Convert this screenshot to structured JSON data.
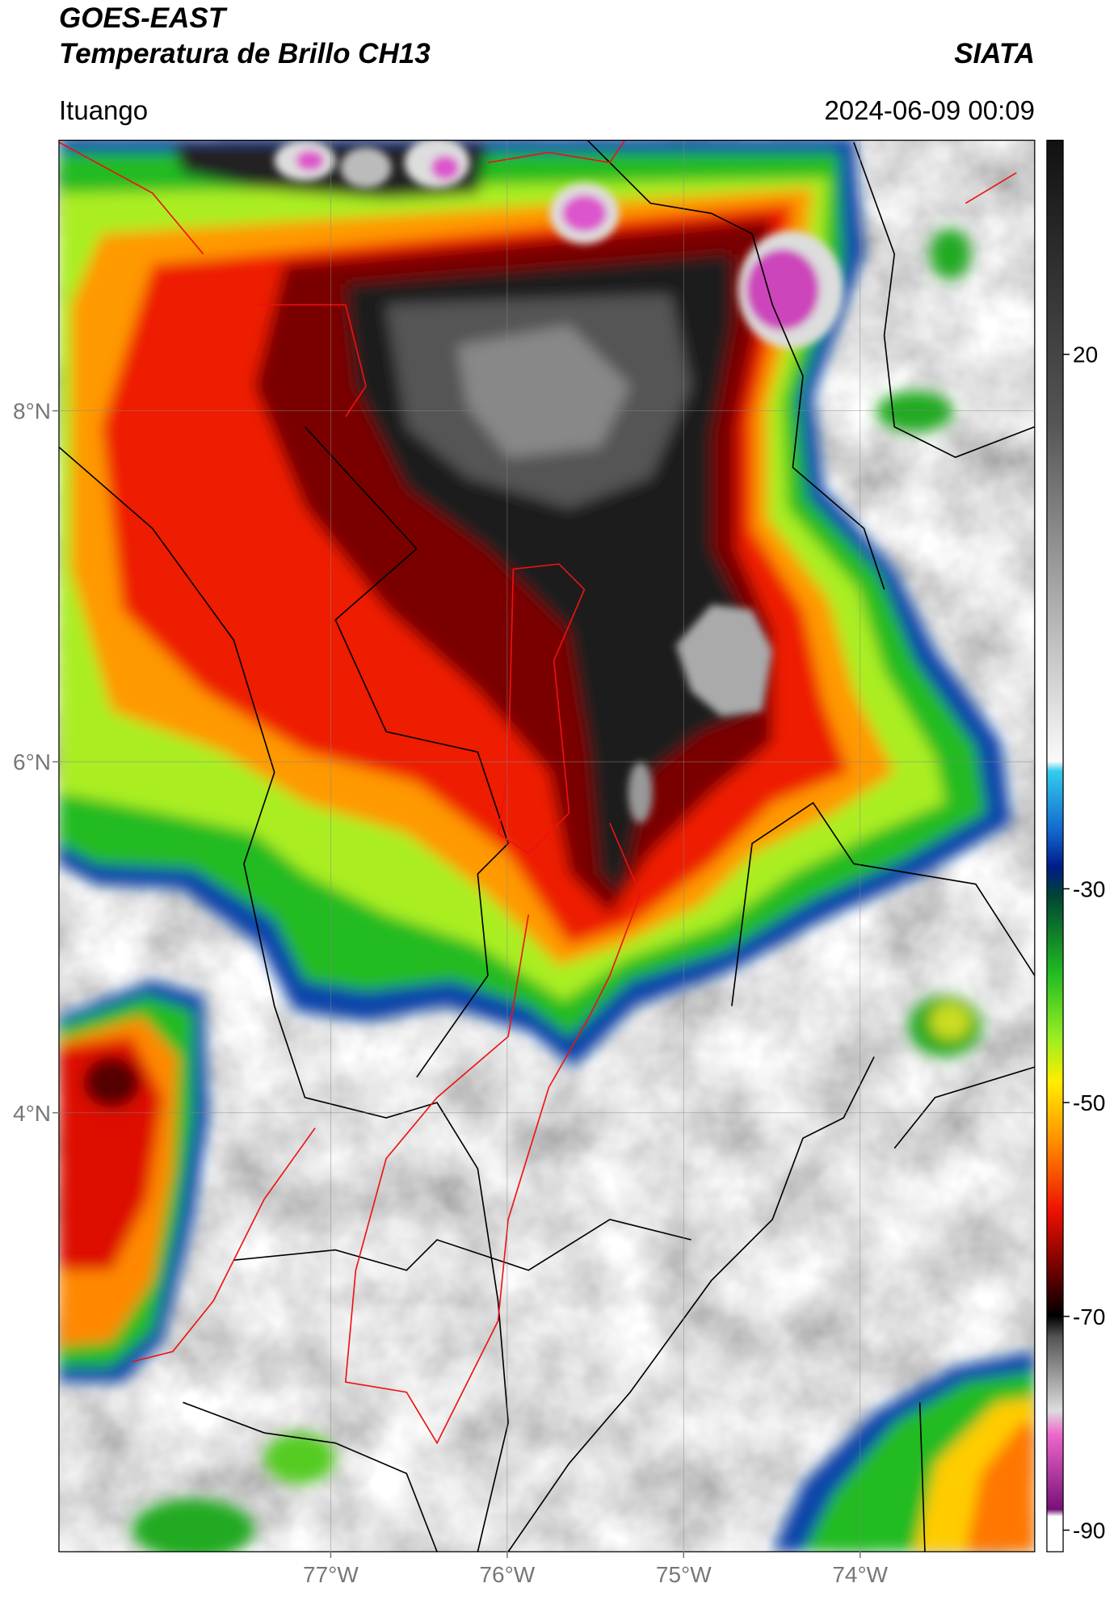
{
  "header": {
    "title_line1": "GOES-EAST",
    "title_line2": "Temperatura de Brillo CH13",
    "source": "SIATA",
    "location": "Ituango",
    "datetime": "2024-06-09 00:09"
  },
  "map": {
    "xlim": [
      -78.54,
      -73.01
    ],
    "ylim": [
      1.5,
      9.54
    ],
    "xticks": [
      {
        "value": -77,
        "label": "77°W"
      },
      {
        "value": -76,
        "label": "76°W"
      },
      {
        "value": -75,
        "label": "75°W"
      },
      {
        "value": -74,
        "label": "74°W"
      }
    ],
    "yticks": [
      {
        "value": 8,
        "label": "8°N"
      },
      {
        "value": 6,
        "label": "6°N"
      },
      {
        "value": 4,
        "label": "4°N"
      }
    ],
    "grid": true
  },
  "colorbar": {
    "clim": [
      -92,
      40
    ],
    "ticks": [
      20,
      -30,
      -50,
      -70,
      -90
    ]
  }
}
